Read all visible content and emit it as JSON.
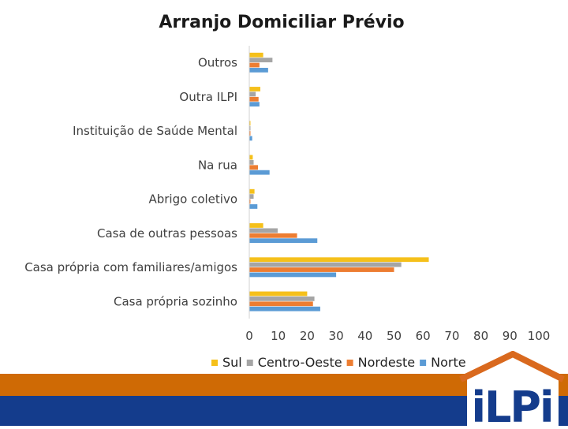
{
  "chart_data": {
    "type": "bar",
    "orientation": "horizontal",
    "title": "Arranjo Domiciliar Prévio",
    "categories": [
      "Outros",
      "Outra ILPI",
      "Instituição de Saúde Mental",
      "Na rua",
      "Abrigo coletivo",
      "Casa de outras pessoas",
      "Casa própria com familiares/amigos",
      "Casa própria sozinho"
    ],
    "series": [
      {
        "name": "Sul",
        "color": "#f5c01a",
        "values": [
          4.8,
          3.8,
          0.4,
          1.2,
          1.8,
          4.8,
          62,
          20
        ]
      },
      {
        "name": "Centro-Oeste",
        "color": "#a5a5a5",
        "values": [
          8,
          2.2,
          0.4,
          1.5,
          1.5,
          9.8,
          52.5,
          22.5
        ]
      },
      {
        "name": "Nordeste",
        "color": "#ed7d31",
        "values": [
          3.5,
          3.2,
          0.4,
          3,
          0.4,
          16.5,
          50,
          22
        ]
      },
      {
        "name": "Norte",
        "color": "#5b9bd5",
        "values": [
          6.5,
          3.5,
          1,
          7,
          2.8,
          23.5,
          30,
          24.5
        ]
      }
    ],
    "xlim": [
      0,
      100
    ],
    "xticks": [
      "0",
      "10",
      "20",
      "30",
      "40",
      "50",
      "60",
      "70",
      "80",
      "90",
      "100"
    ],
    "legend_position": "bottom",
    "grid": false
  },
  "logo": {
    "text": "iLPi",
    "colors": {
      "roof": "#d9691e",
      "text": "#143c8c"
    }
  },
  "theme": {
    "band_orange": "#cf6a05",
    "band_blue": "#143c8c"
  }
}
